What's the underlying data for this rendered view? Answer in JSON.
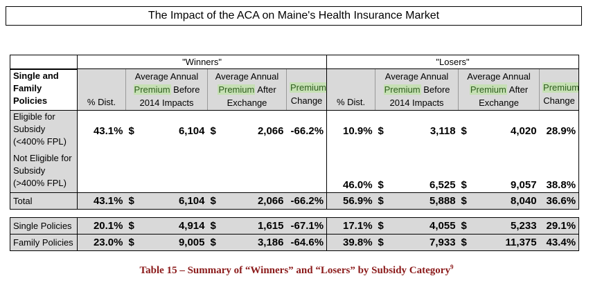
{
  "title": "The Impact of the ACA on Maine's Health Insurance Market",
  "groups": {
    "winners": "\"Winners\"",
    "losers": "\"Losers\""
  },
  "header": {
    "row_label_line1": "Single and",
    "row_label_line2": "Family Policies",
    "pct_dist": "% Dist.",
    "avg_before_l1": "Average Annual",
    "avg_before_l2a": "Premium",
    "avg_before_l2b": " Before",
    "avg_before_l3": "2014 Impacts",
    "avg_after_l1": "Average Annual",
    "avg_after_l2a": "Premium",
    "avg_after_l2b": " After",
    "avg_after_l3": "Exchange",
    "change_l1": "Premium",
    "change_l2": "Change"
  },
  "rows": {
    "eligible": {
      "label_l1": "Eligible for",
      "label_l2": "Subsidy",
      "label_l3": "(<400% FPL)",
      "w_pct": "43.1%",
      "w_before": "6,104",
      "w_after": "2,066",
      "w_change": "-66.2%",
      "l_pct": "10.9%",
      "l_before": "3,118",
      "l_after": "4,020",
      "l_change": "28.9%"
    },
    "not_eligible": {
      "label_l1": "Not Eligible for",
      "label_l2": "Subsidy",
      "label_l3": "(>400% FPL)",
      "l_pct": "46.0%",
      "l_before": "6,525",
      "l_after": "9,057",
      "l_change": "38.8%"
    },
    "total": {
      "label": "Total",
      "w_pct": "43.1%",
      "w_before": "6,104",
      "w_after": "2,066",
      "w_change": "-66.2%",
      "l_pct": "56.9%",
      "l_before": "5,888",
      "l_after": "8,040",
      "l_change": "36.6%"
    },
    "single": {
      "label": "Single Policies",
      "w_pct": "20.1%",
      "w_before": "4,914",
      "w_after": "1,615",
      "w_change": "-67.1%",
      "l_pct": "17.1%",
      "l_before": "4,055",
      "l_after": "5,233",
      "l_change": "29.1%"
    },
    "family": {
      "label": "Family Policies",
      "w_pct": "23.0%",
      "w_before": "9,005",
      "w_after": "3,186",
      "w_change": "-64.6%",
      "l_pct": "39.8%",
      "l_before": "7,933",
      "l_after": "11,375",
      "l_change": "43.4%"
    }
  },
  "currency": "$",
  "caption": "Table 15 – Summary of “Winners” and “Losers” by Subsidy Category",
  "caption_sup": "9"
}
